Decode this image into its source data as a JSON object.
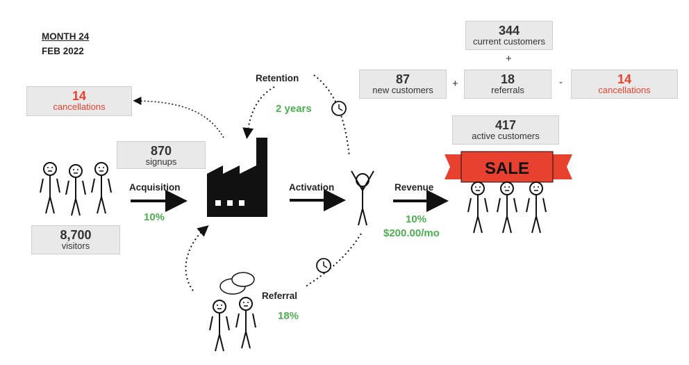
{
  "header": {
    "month": "MONTH 24",
    "date": "FEB 2022"
  },
  "visitors": {
    "value": "8,700",
    "label": "visitors"
  },
  "signups": {
    "value": "870",
    "label": "signups"
  },
  "left_cancellations": {
    "value": "14",
    "label": "cancellations"
  },
  "acquisition": {
    "title": "Acquisition",
    "rate": "10%"
  },
  "retention": {
    "title": "Retention",
    "duration": "2 years"
  },
  "activation": {
    "title": "Activation"
  },
  "revenue": {
    "title": "Revenue",
    "rate": "10%",
    "price": "$200.00/mo"
  },
  "referral": {
    "title": "Referral",
    "rate": "18%"
  },
  "current_customers": {
    "value": "344",
    "label": "current customers"
  },
  "new_customers": {
    "value": "87",
    "label": "new customers"
  },
  "referrals": {
    "value": "18",
    "label": "referrals"
  },
  "right_cancellations": {
    "value": "14",
    "label": "cancellations"
  },
  "active_customers": {
    "value": "417",
    "label": "active customers"
  },
  "operators": {
    "plus_top": "+",
    "plus_mid": "+",
    "minus": "-"
  },
  "sale_banner": "SALE",
  "colors": {
    "red": "#e8412f",
    "green": "#4caf50",
    "box": "#e9e9e9"
  }
}
